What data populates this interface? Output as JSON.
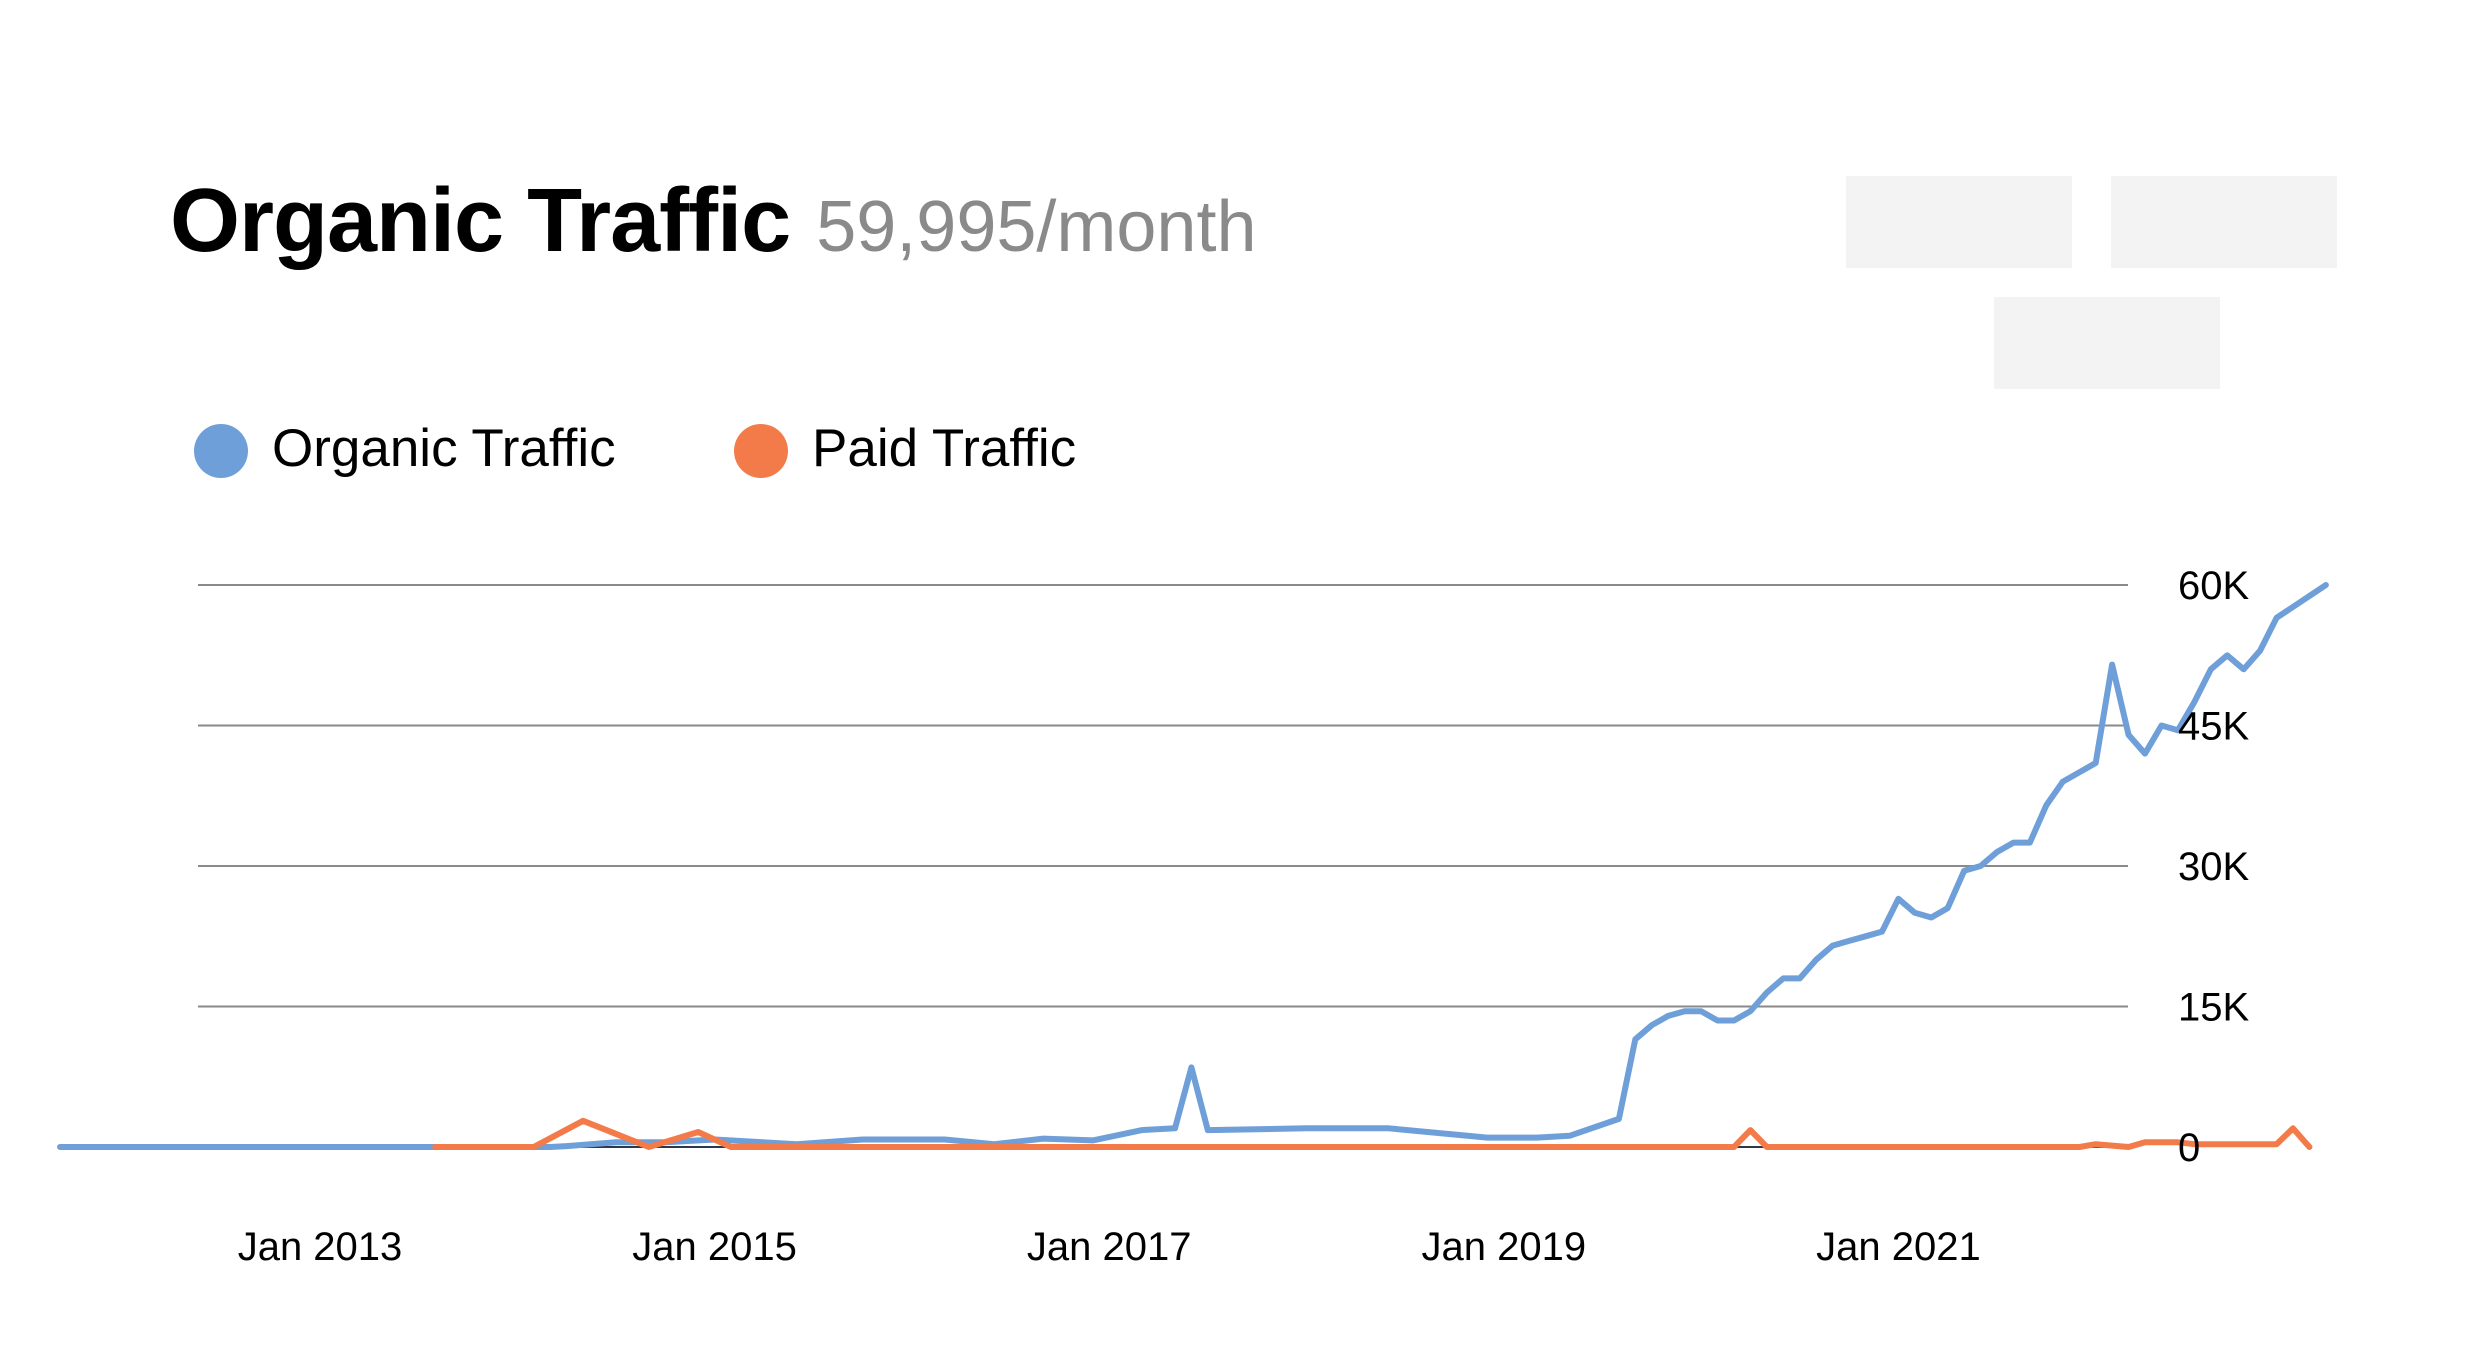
{
  "header": {
    "title": "Organic Traffic",
    "subtitle": "59,995/month"
  },
  "colors": {
    "organic": "#6f9fd8",
    "paid": "#f37b4a",
    "grid": "#8a8a8a",
    "placeholder": "#f3f3f3"
  },
  "chart_data": {
    "type": "line",
    "title": "Organic Traffic",
    "xlabel": "",
    "ylabel": "",
    "ylim": [
      0,
      60000
    ],
    "yticks": [
      0,
      15000,
      30000,
      45000,
      60000
    ],
    "ytick_labels": [
      "0",
      "15K",
      "30K",
      "45K",
      "60K"
    ],
    "xticks": [
      "2013-01",
      "2015-01",
      "2017-01",
      "2019-01",
      "2021-01"
    ],
    "xtick_labels": [
      "Jan 2013",
      "Jan 2015",
      "Jan 2017",
      "Jan 2019",
      "Jan 2021"
    ],
    "grid": true,
    "legend": "top-left",
    "series": [
      {
        "name": "Organic Traffic",
        "color": "#6f9fd8",
        "points": [
          [
            "2012-06",
            0
          ],
          [
            "2013-06",
            0
          ],
          [
            "2014-03",
            0
          ],
          [
            "2014-04",
            100
          ],
          [
            "2014-07",
            500
          ],
          [
            "2014-10",
            500
          ],
          [
            "2015-01",
            800
          ],
          [
            "2015-06",
            300
          ],
          [
            "2015-10",
            800
          ],
          [
            "2016-03",
            800
          ],
          [
            "2016-06",
            300
          ],
          [
            "2016-09",
            900
          ],
          [
            "2016-12",
            700
          ],
          [
            "2017-03",
            1800
          ],
          [
            "2017-05",
            2000
          ],
          [
            "2017-06",
            8500
          ],
          [
            "2017-07",
            1800
          ],
          [
            "2018-01",
            2000
          ],
          [
            "2018-06",
            2000
          ],
          [
            "2018-12",
            1000
          ],
          [
            "2019-03",
            1000
          ],
          [
            "2019-05",
            1200
          ],
          [
            "2019-08",
            3000
          ],
          [
            "2019-09",
            11500
          ],
          [
            "2019-10",
            13000
          ],
          [
            "2019-11",
            14000
          ],
          [
            "2019-12",
            14500
          ],
          [
            "2020-01",
            14500
          ],
          [
            "2020-02",
            13500
          ],
          [
            "2020-03",
            13500
          ],
          [
            "2020-04",
            14500
          ],
          [
            "2020-05",
            16500
          ],
          [
            "2020-06",
            18000
          ],
          [
            "2020-07",
            18000
          ],
          [
            "2020-08",
            20000
          ],
          [
            "2020-09",
            21500
          ],
          [
            "2020-10",
            22000
          ],
          [
            "2020-11",
            22500
          ],
          [
            "2020-12",
            23000
          ],
          [
            "2021-01",
            26500
          ],
          [
            "2021-02",
            25000
          ],
          [
            "2021-03",
            24500
          ],
          [
            "2021-04",
            25500
          ],
          [
            "2021-05",
            29500
          ],
          [
            "2021-06",
            30000
          ],
          [
            "2021-07",
            31500
          ],
          [
            "2021-08",
            32500
          ],
          [
            "2021-09",
            32500
          ],
          [
            "2021-10",
            36500
          ],
          [
            "2021-11",
            39000
          ],
          [
            "2021-12",
            40000
          ],
          [
            "2022-01",
            41000
          ],
          [
            "2022-02",
            51500
          ],
          [
            "2022-03",
            44000
          ],
          [
            "2022-04",
            42000
          ],
          [
            "2022-05",
            45000
          ],
          [
            "2022-06",
            44500
          ],
          [
            "2022-07",
            47500
          ],
          [
            "2022-08",
            51000
          ],
          [
            "2022-09",
            52500
          ],
          [
            "2022-10",
            51000
          ],
          [
            "2022-11",
            53000
          ],
          [
            "2022-12",
            56500
          ],
          [
            "2023-03",
            60000
          ]
        ]
      },
      {
        "name": "Paid Traffic",
        "color": "#f37b4a",
        "points": [
          [
            "2013-08",
            0
          ],
          [
            "2014-02",
            0
          ],
          [
            "2014-05",
            2800
          ],
          [
            "2014-09",
            0
          ],
          [
            "2014-12",
            1600
          ],
          [
            "2015-02",
            0
          ],
          [
            "2016-06",
            0
          ],
          [
            "2017-06",
            0
          ],
          [
            "2018-06",
            0
          ],
          [
            "2019-06",
            0
          ],
          [
            "2020-03",
            0
          ],
          [
            "2020-04",
            1800
          ],
          [
            "2020-05",
            0
          ],
          [
            "2021-06",
            0
          ],
          [
            "2021-12",
            0
          ],
          [
            "2022-01",
            300
          ],
          [
            "2022-03",
            0
          ],
          [
            "2022-04",
            500
          ],
          [
            "2022-06",
            500
          ],
          [
            "2022-07",
            300
          ],
          [
            "2022-12",
            300
          ],
          [
            "2023-01",
            2000
          ],
          [
            "2023-02",
            0
          ]
        ]
      }
    ]
  }
}
